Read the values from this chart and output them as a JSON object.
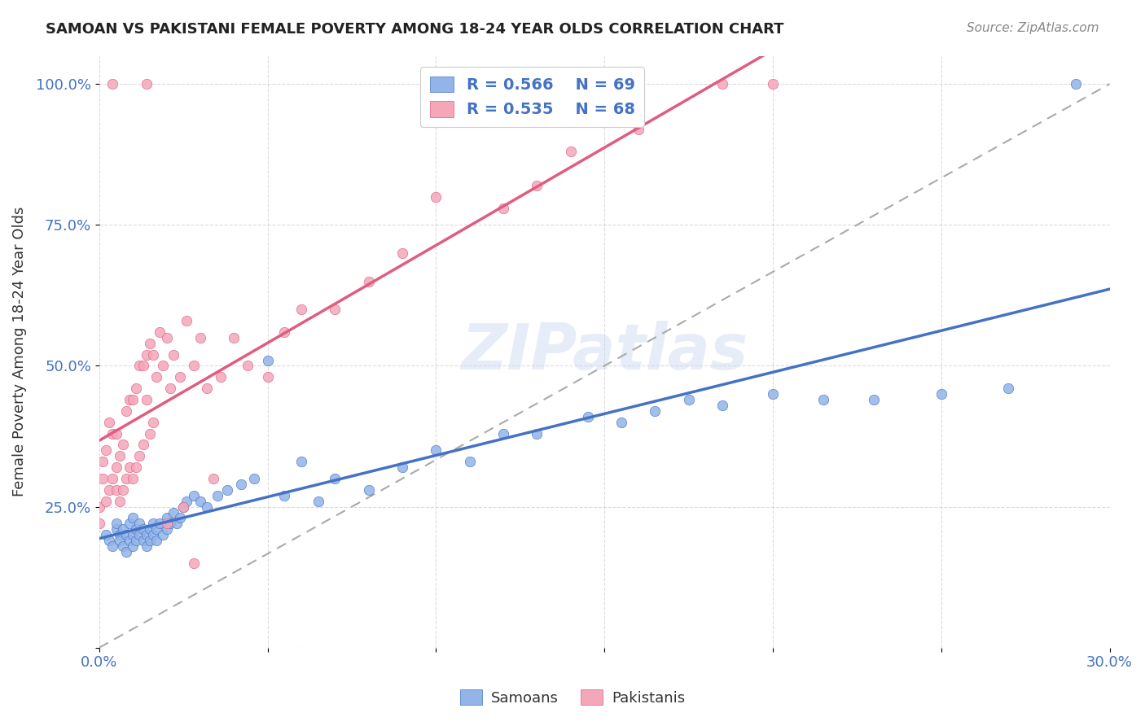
{
  "title": "SAMOAN VS PAKISTANI FEMALE POVERTY AMONG 18-24 YEAR OLDS CORRELATION CHART",
  "source": "Source: ZipAtlas.com",
  "ylabel": "Female Poverty Among 18-24 Year Olds",
  "samoan_R": "0.566",
  "samoan_N": "69",
  "pakistani_R": "0.535",
  "pakistani_N": "68",
  "samoan_color": "#92b4e8",
  "samoan_color_dark": "#4472c4",
  "pakistani_color": "#f4a7b9",
  "pakistani_color_dark": "#e05c80",
  "legend_label_samoans": "Samoans",
  "legend_label_pakistanis": "Pakistanis",
  "watermark": "ZIPatlas",
  "xlim": [
    0.0,
    0.3
  ],
  "ylim": [
    0.0,
    1.05
  ],
  "samoan_x": [
    0.002,
    0.003,
    0.004,
    0.005,
    0.005,
    0.006,
    0.006,
    0.007,
    0.007,
    0.008,
    0.008,
    0.009,
    0.009,
    0.01,
    0.01,
    0.01,
    0.011,
    0.011,
    0.012,
    0.012,
    0.013,
    0.013,
    0.014,
    0.014,
    0.015,
    0.015,
    0.016,
    0.016,
    0.017,
    0.017,
    0.018,
    0.019,
    0.02,
    0.02,
    0.021,
    0.022,
    0.023,
    0.024,
    0.025,
    0.026,
    0.028,
    0.03,
    0.032,
    0.035,
    0.038,
    0.042,
    0.046,
    0.05,
    0.055,
    0.06,
    0.065,
    0.07,
    0.08,
    0.09,
    0.1,
    0.11,
    0.12,
    0.13,
    0.145,
    0.155,
    0.165,
    0.175,
    0.185,
    0.2,
    0.215,
    0.23,
    0.25,
    0.27,
    0.29
  ],
  "samoan_y": [
    0.2,
    0.19,
    0.18,
    0.21,
    0.22,
    0.2,
    0.19,
    0.18,
    0.21,
    0.17,
    0.2,
    0.19,
    0.22,
    0.18,
    0.2,
    0.23,
    0.19,
    0.21,
    0.2,
    0.22,
    0.19,
    0.21,
    0.2,
    0.18,
    0.21,
    0.19,
    0.22,
    0.2,
    0.19,
    0.21,
    0.22,
    0.2,
    0.23,
    0.21,
    0.22,
    0.24,
    0.22,
    0.23,
    0.25,
    0.26,
    0.27,
    0.26,
    0.25,
    0.27,
    0.28,
    0.29,
    0.3,
    0.51,
    0.27,
    0.33,
    0.26,
    0.3,
    0.28,
    0.32,
    0.35,
    0.33,
    0.38,
    0.38,
    0.41,
    0.4,
    0.42,
    0.44,
    0.43,
    0.45,
    0.44,
    0.44,
    0.45,
    0.46,
    1.0
  ],
  "pakistani_x": [
    0.0,
    0.0,
    0.001,
    0.001,
    0.002,
    0.002,
    0.003,
    0.003,
    0.004,
    0.004,
    0.005,
    0.005,
    0.005,
    0.006,
    0.006,
    0.007,
    0.007,
    0.008,
    0.008,
    0.009,
    0.009,
    0.01,
    0.01,
    0.011,
    0.011,
    0.012,
    0.012,
    0.013,
    0.013,
    0.014,
    0.014,
    0.015,
    0.015,
    0.016,
    0.016,
    0.017,
    0.018,
    0.019,
    0.02,
    0.021,
    0.022,
    0.024,
    0.026,
    0.028,
    0.03,
    0.032,
    0.034,
    0.036,
    0.04,
    0.044,
    0.05,
    0.055,
    0.06,
    0.07,
    0.08,
    0.09,
    0.1,
    0.12,
    0.13,
    0.14,
    0.16,
    0.185,
    0.2,
    0.004,
    0.014,
    0.02,
    0.025,
    0.028
  ],
  "pakistani_y": [
    0.22,
    0.25,
    0.3,
    0.33,
    0.26,
    0.35,
    0.28,
    0.4,
    0.3,
    0.38,
    0.28,
    0.32,
    0.38,
    0.26,
    0.34,
    0.28,
    0.36,
    0.3,
    0.42,
    0.32,
    0.44,
    0.3,
    0.44,
    0.32,
    0.46,
    0.34,
    0.5,
    0.36,
    0.5,
    0.44,
    0.52,
    0.38,
    0.54,
    0.4,
    0.52,
    0.48,
    0.56,
    0.5,
    0.55,
    0.46,
    0.52,
    0.48,
    0.58,
    0.5,
    0.55,
    0.46,
    0.3,
    0.48,
    0.55,
    0.5,
    0.48,
    0.56,
    0.6,
    0.6,
    0.65,
    0.7,
    0.8,
    0.78,
    0.82,
    0.88,
    0.92,
    1.0,
    1.0,
    1.0,
    1.0,
    0.22,
    0.25,
    0.15
  ]
}
